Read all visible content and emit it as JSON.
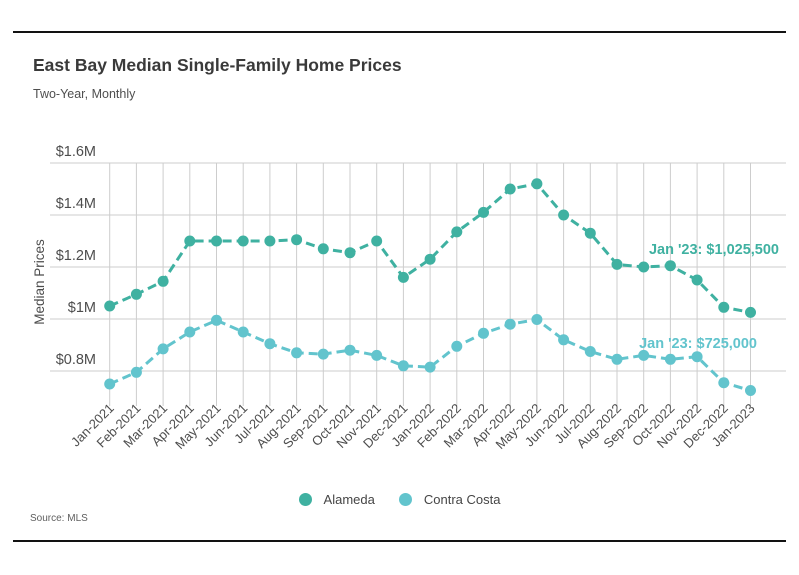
{
  "page": {
    "title": "East Bay Median Single-Family Home Prices",
    "subtitle": "Two-Year, Monthly",
    "source": "Source: MLS"
  },
  "colors": {
    "alameda": "#3FB1A1",
    "contra_costa": "#62C4CD",
    "grid": "#CDCDCD",
    "axis_text": "#4D4D4D",
    "title_text": "#3A3A3A",
    "rule": "#121212"
  },
  "chart_data": {
    "type": "line",
    "title": "East Bay Median Single-Family Home Prices",
    "subtitle": "Two-Year, Monthly",
    "xlabel": "",
    "ylabel": "Median Prices",
    "grid": true,
    "legend_position": "bottom",
    "ylim": [
      690000,
      1600000
    ],
    "yticks": [
      {
        "value": 1600000,
        "label": "$1.6M"
      },
      {
        "value": 1400000,
        "label": "$1.4M"
      },
      {
        "value": 1200000,
        "label": "$1.2M"
      },
      {
        "value": 1000000,
        "label": "$1M"
      },
      {
        "value": 800000,
        "label": "$0.8M"
      }
    ],
    "categories": [
      "Jan-2021",
      "Feb-2021",
      "Mar-2021",
      "Apr-2021",
      "May-2021",
      "Jun-2021",
      "Jul-2021",
      "Aug-2021",
      "Sep-2021",
      "Oct-2021",
      "Nov-2021",
      "Dec-2021",
      "Jan-2022",
      "Feb-2022",
      "Mar-2022",
      "Apr-2022",
      "May-2022",
      "Jun-2022",
      "Jul-2022",
      "Aug-2022",
      "Sep-2022",
      "Oct-2022",
      "Nov-2022",
      "Dec-2022",
      "Jan-2023"
    ],
    "series": [
      {
        "name": "Alameda",
        "color": "#3FB1A1",
        "values": [
          1050000,
          1095000,
          1145000,
          1300000,
          1300000,
          1300000,
          1300000,
          1305000,
          1270000,
          1255000,
          1300000,
          1160000,
          1230000,
          1335000,
          1410000,
          1500000,
          1520000,
          1400000,
          1330000,
          1210000,
          1200000,
          1205000,
          1150000,
          1045000,
          1025500
        ]
      },
      {
        "name": "Contra Costa",
        "color": "#62C4CD",
        "values": [
          750000,
          795000,
          885000,
          950000,
          995000,
          950000,
          905000,
          870000,
          865000,
          880000,
          860000,
          820000,
          815000,
          895000,
          945000,
          980000,
          998000,
          920000,
          875000,
          845000,
          860000,
          845000,
          855000,
          755000,
          725000
        ]
      }
    ],
    "annotations": [
      {
        "series": "Alameda",
        "text": "Jan '23: $1,025,500"
      },
      {
        "series": "Contra Costa",
        "text": "Jan '23: $725,000"
      }
    ]
  }
}
